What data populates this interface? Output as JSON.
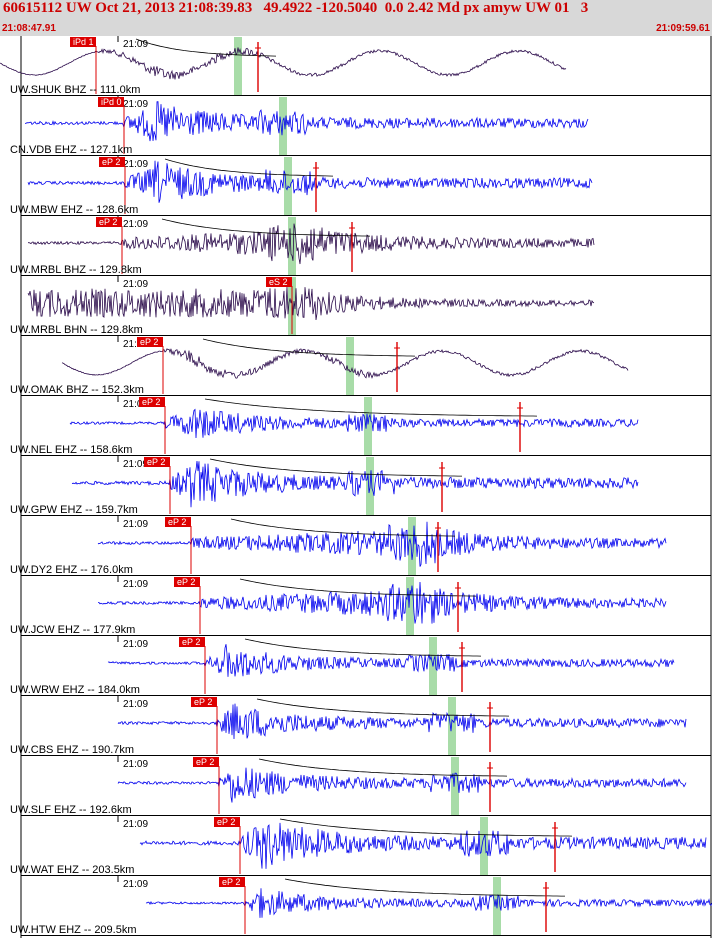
{
  "header": {
    "title": "60615112 UW Oct 21, 2013 21:08:39.83   49.4922 -120.5040  0.0 2.42 Md px amyw UW 01   3",
    "time_start": "21:08:47.91",
    "time_end": "21:09:59.61"
  },
  "colors": {
    "header_bg": "#d8d8d8",
    "header_text": "#cc0000",
    "trace_blue": "#0000ee",
    "trace_dark": "#2a0a4a",
    "pick_red": "#dd0000",
    "window_green": "#a8dca8",
    "decay_curve": "#000000"
  },
  "minute_label": "21:09",
  "traces": [
    {
      "label": "UW.SHUK BHZ -- 111.0km",
      "pick": "iPd 1",
      "start": 0,
      "end": 566,
      "p": 96,
      "s": 238,
      "coda": 258,
      "amp": 9,
      "color": "dark",
      "longp": true,
      "burst": 150
    },
    {
      "label": "CN.VDB EHZ -- 127.1km",
      "pick": "iPd 0",
      "start": 25,
      "end": 588,
      "p": 124,
      "s": 283,
      "amp": 20,
      "color": "blue",
      "burst": 150
    },
    {
      "label": "UW.MBW EHZ -- 128.6km",
      "pick": "eP 2",
      "start": 28,
      "end": 592,
      "p": 125,
      "s": 288,
      "coda": 316,
      "amp": 20,
      "color": "blue",
      "burst": 155
    },
    {
      "label": "UW.MRBL BHZ -- 129.8km",
      "pick": "eP 2",
      "start": 28,
      "end": 594,
      "p": 122,
      "s": 292,
      "coda": 352,
      "amp": 18,
      "color": "dark",
      "burst": 300
    },
    {
      "label": "UW.MRBL BHN -- 129.8km",
      "pick": "eS 2",
      "start": 28,
      "end": 594,
      "s": 292,
      "amp": 12,
      "color": "dark",
      "burst": 315
    },
    {
      "label": "UW.OMAK BHZ -- 152.3km",
      "pick": "eP 2",
      "start": 62,
      "end": 628,
      "p": 163,
      "s": 350,
      "coda": 397,
      "amp": 10,
      "color": "dark",
      "longp": true,
      "burst": 185
    },
    {
      "label": "UW.NEL EHZ -- 158.6km",
      "pick": "eP 2",
      "start": 70,
      "end": 638,
      "p": 165,
      "s": 368,
      "coda": 520,
      "amp": 16,
      "color": "blue",
      "burst": 190
    },
    {
      "label": "UW.GPW EHZ -- 159.7km",
      "pick": "eP 2",
      "start": 72,
      "end": 638,
      "p": 170,
      "s": 370,
      "coda": 442,
      "amp": 22,
      "color": "blue",
      "burst": 190
    },
    {
      "label": "UW.DY2 EHZ -- 176.0km",
      "pick": "eP 2",
      "start": 98,
      "end": 666,
      "p": 191,
      "s": 412,
      "coda": 438,
      "amp": 18,
      "color": "blue",
      "burst": 415
    },
    {
      "label": "UW.JCW EHZ -- 177.9km",
      "pick": "eP 2",
      "start": 98,
      "end": 666,
      "p": 200,
      "s": 410,
      "coda": 458,
      "amp": 18,
      "color": "blue",
      "burst": 410
    },
    {
      "label": "UW.WRW EHZ -- 184.0km",
      "pick": "eP 2",
      "start": 108,
      "end": 674,
      "p": 205,
      "s": 433,
      "coda": 462,
      "amp": 16,
      "color": "blue",
      "burst": 225
    },
    {
      "label": "UW.CBS EHZ -- 190.7km",
      "pick": "eP 2",
      "start": 118,
      "end": 686,
      "p": 217,
      "s": 452,
      "coda": 490,
      "amp": 18,
      "color": "blue",
      "burst": 230
    },
    {
      "label": "UW.SLF EHZ -- 192.6km",
      "pick": "eP 2",
      "start": 118,
      "end": 686,
      "p": 219,
      "s": 455,
      "coda": 490,
      "amp": 18,
      "color": "blue",
      "burst": 230
    },
    {
      "label": "UW.WAT EHZ -- 203.5km",
      "pick": "eP 2",
      "start": 140,
      "end": 706,
      "p": 240,
      "s": 484,
      "coda": 555,
      "amp": 24,
      "color": "blue",
      "burst": 260
    },
    {
      "label": "UW.HTW EHZ -- 209.5km",
      "pick": "eP 2",
      "start": 146,
      "end": 712,
      "p": 245,
      "s": 497,
      "coda": 546,
      "amp": 14,
      "color": "blue",
      "burst": 255
    }
  ]
}
